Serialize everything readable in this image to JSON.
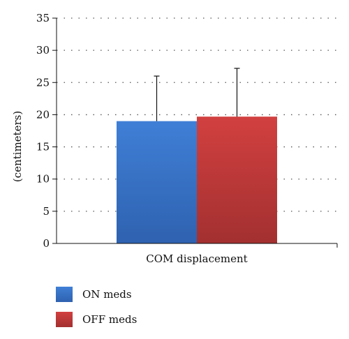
{
  "chart_data": {
    "type": "bar",
    "categories": [
      "COM displacement"
    ],
    "series": [
      {
        "name": "ON meds",
        "values": [
          19.0
        ],
        "error": [
          7.0
        ],
        "color": "#3a72c4"
      },
      {
        "name": "OFF meds",
        "values": [
          19.7
        ],
        "error": [
          7.5
        ],
        "color": "#c43a3a"
      }
    ],
    "xlabel": "COM displacement",
    "ylabel": "(centimeters)",
    "ylim": [
      0,
      35
    ],
    "yticks": [
      0,
      5,
      10,
      15,
      20,
      25,
      30,
      35
    ],
    "grid": "horizontal-dotted",
    "legend_position": "bottom-left"
  }
}
